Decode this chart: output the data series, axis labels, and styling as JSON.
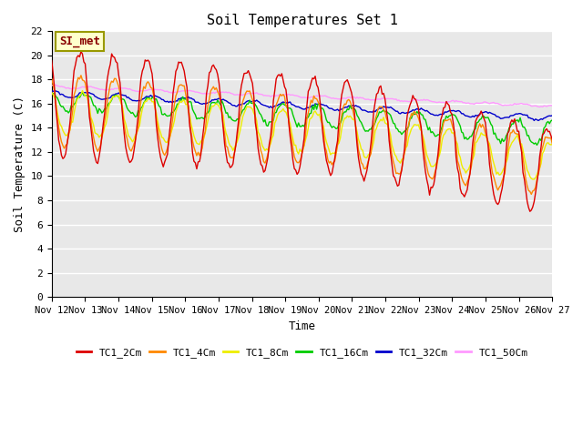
{
  "title": "Soil Temperatures Set 1",
  "xlabel": "Time",
  "ylabel": "Soil Temperature (C)",
  "ylim": [
    0,
    22
  ],
  "yticks": [
    0,
    2,
    4,
    6,
    8,
    10,
    12,
    14,
    16,
    18,
    20,
    22
  ],
  "x_labels": [
    "Nov 12",
    "Nov 13",
    "Nov 14",
    "Nov 15",
    "Nov 16",
    "Nov 17",
    "Nov 18",
    "Nov 19",
    "Nov 20",
    "Nov 21",
    "Nov 22",
    "Nov 23",
    "Nov 24",
    "Nov 25",
    "Nov 26",
    "Nov 27"
  ],
  "series_colors": {
    "TC1_2Cm": "#dd0000",
    "TC1_4Cm": "#ff8800",
    "TC1_8Cm": "#eeee00",
    "TC1_16Cm": "#00cc00",
    "TC1_32Cm": "#0000cc",
    "TC1_50Cm": "#ff99ff"
  },
  "legend_label": "SI_met",
  "background_color": "#e8e8e8",
  "grid_color": "#ffffff",
  "plot_bg_upper": "#d8d8d8",
  "plot_bg_lower": "#e8e8e8",
  "annotation_bg": "#ffffcc",
  "annotation_border": "#999900",
  "annotation_text_color": "#880000"
}
